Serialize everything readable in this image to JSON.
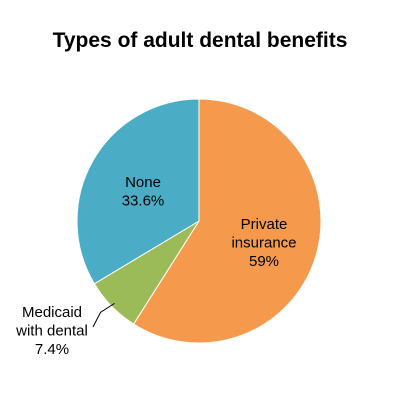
{
  "chart_data": {
    "type": "pie",
    "title": "Types of adult dental benefits",
    "slices": [
      {
        "label_lines": [
          "Private",
          "insurance"
        ],
        "value_text": "59%",
        "value": 59.0,
        "color": "#F59A4D"
      },
      {
        "label_lines": [
          "Medicaid",
          "with dental"
        ],
        "value_text": "7.4%",
        "value": 7.4,
        "color": "#9BBB59"
      },
      {
        "label_lines": [
          "None"
        ],
        "value_text": "33.6%",
        "value": 33.6,
        "color": "#4BACC6"
      }
    ],
    "start_angle": "12 o'clock",
    "direction": "clockwise",
    "legend": "none"
  }
}
